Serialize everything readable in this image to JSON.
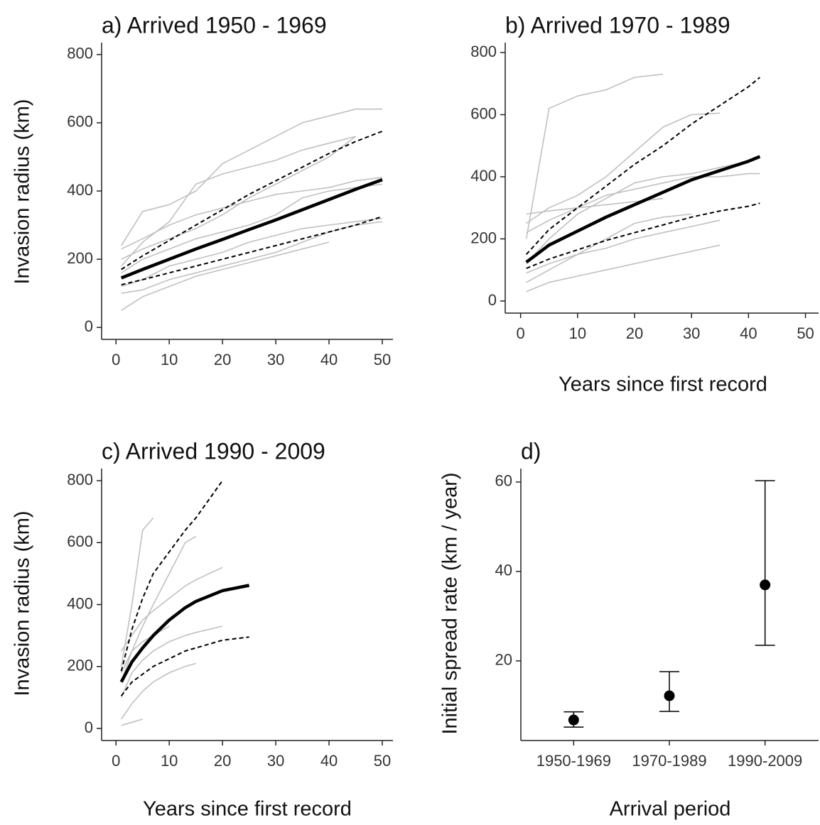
{
  "chart_data": [
    {
      "type": "line",
      "title": "a) Arrived 1950 - 1969",
      "y_label": "Invasion radius (km)",
      "x": [
        1,
        5,
        10,
        15,
        20,
        25,
        30,
        35,
        40,
        45,
        50
      ],
      "series": [
        {
          "color": "#c0c0c0",
          "values": [
            240,
            340,
            360,
            400,
            480,
            520,
            560,
            600,
            620,
            640,
            640
          ]
        },
        {
          "color": "#c0c0c0",
          "values": [
            200,
            230,
            260,
            290,
            330,
            380,
            420,
            460,
            500,
            560,
            null
          ]
        },
        {
          "color": "#c0c0c0",
          "values": [
            100,
            110,
            140,
            160,
            180,
            200,
            220,
            250,
            280,
            300,
            310
          ]
        },
        {
          "color": "#c0c0c0",
          "values": [
            160,
            200,
            230,
            260,
            280,
            300,
            330,
            380,
            400,
            410,
            420
          ]
        },
        {
          "color": "#c0c0c0",
          "values": [
            50,
            90,
            120,
            150,
            170,
            190,
            210,
            230,
            250,
            null,
            null
          ]
        },
        {
          "color": "#c0c0c0",
          "values": [
            230,
            260,
            300,
            330,
            350,
            370,
            390,
            400,
            410,
            430,
            440
          ]
        },
        {
          "color": "#c0c0c0",
          "values": [
            120,
            140,
            180,
            200,
            220,
            250,
            270,
            290,
            300,
            310,
            320
          ]
        },
        {
          "color": "#c0c0c0",
          "values": [
            180,
            250,
            310,
            420,
            450,
            470,
            490,
            520,
            540,
            560,
            null
          ]
        },
        {
          "color": "#000000",
          "dashed": true,
          "values": [
            170,
            210,
            255,
            300,
            345,
            390,
            430,
            470,
            510,
            545,
            575
          ]
        },
        {
          "color": "#000000",
          "dashed": true,
          "values": [
            125,
            140,
            160,
            180,
            200,
            220,
            240,
            260,
            280,
            300,
            325
          ]
        },
        {
          "color": "#000000",
          "bold": true,
          "values": [
            145,
            170,
            200,
            230,
            258,
            287,
            315,
            345,
            375,
            405,
            433
          ]
        }
      ],
      "xlim": [
        -2.7,
        52
      ],
      "ylim": [
        -35,
        835
      ],
      "xticks": [
        0,
        10,
        20,
        30,
        40,
        50
      ],
      "yticks": [
        0,
        200,
        400,
        600,
        800
      ]
    },
    {
      "type": "line",
      "title": "b) Arrived 1970 - 1989",
      "x_label": "Years since first record",
      "x": [
        1,
        5,
        10,
        15,
        20,
        25,
        30,
        35,
        40,
        42
      ],
      "series": [
        {
          "color": "#c0c0c0",
          "values": [
            200,
            620,
            660,
            680,
            720,
            730,
            null,
            null,
            null,
            null
          ]
        },
        {
          "color": "#c0c0c0",
          "values": [
            120,
            200,
            280,
            330,
            380,
            400,
            410,
            430,
            450,
            null
          ]
        },
        {
          "color": "#c0c0c0",
          "values": [
            60,
            100,
            150,
            200,
            250,
            270,
            280,
            null,
            null,
            null
          ]
        },
        {
          "color": "#c0c0c0",
          "values": [
            250,
            300,
            340,
            400,
            480,
            560,
            600,
            605,
            null,
            null
          ]
        },
        {
          "color": "#c0c0c0",
          "values": [
            30,
            60,
            80,
            100,
            120,
            140,
            160,
            180,
            null,
            null
          ]
        },
        {
          "color": "#c0c0c0",
          "values": [
            220,
            260,
            300,
            340,
            360,
            380,
            400,
            400,
            410,
            410
          ]
        },
        {
          "color": "#c0c0c0",
          "values": [
            90,
            120,
            150,
            170,
            200,
            220,
            240,
            260,
            null,
            null
          ]
        },
        {
          "color": "#c0c0c0",
          "values": [
            280,
            290,
            300,
            310,
            320,
            330,
            null,
            null,
            null,
            null
          ]
        },
        {
          "color": "#000000",
          "dashed": true,
          "values": [
            150,
            230,
            300,
            370,
            440,
            500,
            570,
            630,
            690,
            720
          ]
        },
        {
          "color": "#000000",
          "dashed": true,
          "values": [
            105,
            135,
            165,
            195,
            220,
            245,
            270,
            290,
            305,
            315
          ]
        },
        {
          "color": "#000000",
          "bold": true,
          "values": [
            125,
            180,
            225,
            270,
            310,
            350,
            390,
            420,
            450,
            465
          ]
        }
      ],
      "xlim": [
        -2.7,
        52.3
      ],
      "ylim": [
        -39,
        832
      ],
      "xticks": [
        0,
        10,
        20,
        30,
        40,
        50
      ],
      "yticks": [
        0,
        200,
        400,
        600,
        800
      ]
    },
    {
      "type": "line",
      "title": "c) Arrived 1990 - 2009",
      "y_label": "Invasion radius (km)",
      "x_label": "Years since first record",
      "x": [
        1,
        3,
        5,
        7,
        10,
        13,
        15,
        20,
        25
      ],
      "series": [
        {
          "color": "#c0c0c0",
          "values": [
            200,
            400,
            640,
            680,
            null,
            null,
            null,
            null,
            null
          ]
        },
        {
          "color": "#c0c0c0",
          "values": [
            150,
            250,
            330,
            400,
            500,
            600,
            620,
            null,
            null
          ]
        },
        {
          "color": "#c0c0c0",
          "values": [
            30,
            80,
            120,
            150,
            180,
            200,
            210,
            null,
            null
          ]
        },
        {
          "color": "#c0c0c0",
          "values": [
            250,
            300,
            350,
            380,
            420,
            460,
            480,
            520,
            null
          ]
        },
        {
          "color": "#c0c0c0",
          "values": [
            100,
            180,
            220,
            250,
            280,
            300,
            310,
            330,
            null
          ]
        },
        {
          "color": "#c0c0c0",
          "values": [
            10,
            20,
            30,
            null,
            null,
            null,
            null,
            null,
            null
          ]
        },
        {
          "color": "#c0c0c0",
          "values": [
            180,
            250,
            280,
            300,
            330,
            null,
            null,
            null,
            null
          ]
        },
        {
          "color": "#000000",
          "dashed": true,
          "values": [
            185,
            320,
            420,
            500,
            570,
            640,
            680,
            800,
            null
          ]
        },
        {
          "color": "#000000",
          "dashed": true,
          "values": [
            105,
            150,
            175,
            200,
            225,
            250,
            260,
            285,
            295
          ]
        },
        {
          "color": "#000000",
          "bold": true,
          "values": [
            150,
            215,
            260,
            300,
            350,
            390,
            410,
            445,
            462
          ]
        }
      ],
      "xlim": [
        -2.7,
        52
      ],
      "ylim": [
        -39,
        839
      ],
      "xticks": [
        0,
        10,
        20,
        30,
        40,
        50
      ],
      "yticks": [
        0,
        200,
        400,
        600,
        800
      ]
    },
    {
      "type": "errorbar",
      "title": "d)",
      "y_label": "Initial spread rate (km / year)",
      "x_label": "Arrival period",
      "categories": [
        "1950-1969",
        "1970-1989",
        "1990-2009"
      ],
      "values": [
        6.8,
        12.2,
        37.0
      ],
      "lower": [
        5.2,
        8.7,
        23.5
      ],
      "upper": [
        8.6,
        17.6,
        60.3
      ],
      "color": "#000000",
      "ylim": [
        2.2,
        63
      ],
      "yticks": [
        20,
        40,
        60
      ]
    }
  ]
}
